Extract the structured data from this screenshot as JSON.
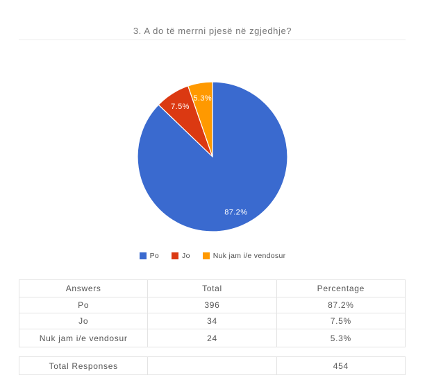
{
  "page": {
    "title": "3. A do të merrni pjesë në zgjedhje?"
  },
  "chart_data": {
    "type": "pie",
    "title": "3. A do të merrni pjesë në zgjedhje?",
    "categories": [
      "Po",
      "Jo",
      "Nuk jam i/e vendosur"
    ],
    "values": [
      87.2,
      7.5,
      5.3
    ],
    "counts": [
      396,
      34,
      24
    ],
    "total_responses": 454,
    "slice_labels": [
      "87.2%",
      "7.5%",
      "5.3%"
    ],
    "colors": [
      "#3a6acf",
      "#db3912",
      "#ff9900"
    ],
    "slice_label_color": "#ffffff",
    "legend_position": "bottom",
    "start_angle_deg": 0,
    "direction": "clockwise"
  },
  "table": {
    "headers": [
      "Answers",
      "Total",
      "Percentage"
    ],
    "rows": [
      {
        "answer": "Po",
        "total": "396",
        "percentage": "87.2%"
      },
      {
        "answer": "Jo",
        "total": "34",
        "percentage": "7.5%"
      },
      {
        "answer": "Nuk jam i/e vendosur",
        "total": "24",
        "percentage": "5.3%"
      }
    ],
    "footer": {
      "label": "Total Responses",
      "total": "",
      "value": "454"
    }
  }
}
